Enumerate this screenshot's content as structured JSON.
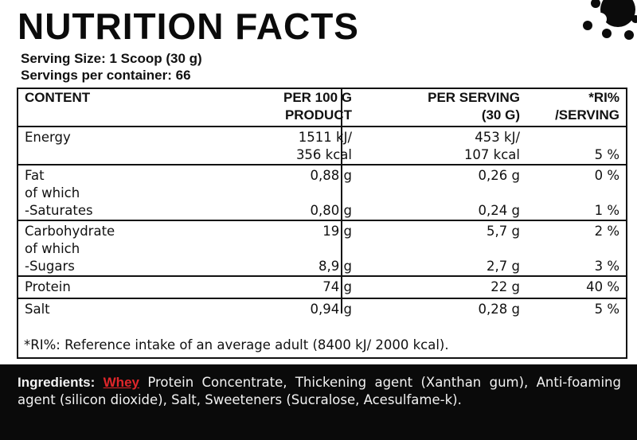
{
  "title": "NUTRITION FACTS",
  "serving": {
    "size": "Serving Size: 1 Scoop (30 g)",
    "per_container": "Servings per container: 66"
  },
  "table": {
    "headers": {
      "content": "CONTENT",
      "per100_l1": "PER 100 G",
      "per100_l2": "PRODUCT",
      "perserv_l1": "PER SERVING",
      "perserv_l2": "(30 G)",
      "ri_l1": "*RI%",
      "ri_l2": "/SERVING"
    },
    "energy": {
      "label": "Energy",
      "per100_l1": "1511 kJ/",
      "per100_l2": "356 kcal",
      "perserv_l1": "453 kJ/",
      "perserv_l2": "107 kcal",
      "ri": "5 %"
    },
    "fat": {
      "label": "Fat",
      "sub_label": "of which",
      "sub_item": "-Saturates",
      "per100": "0,88 g",
      "perserv": "0,26 g",
      "ri": "0 %",
      "sat_per100": "0,80 g",
      "sat_perserv": "0,24 g",
      "sat_ri": "1 %"
    },
    "carb": {
      "label": "Carbohydrate",
      "sub_label": "of which",
      "sub_item": "-Sugars",
      "per100": "19 g",
      "perserv": "5,7 g",
      "ri": "2 %",
      "sug_per100": "8,9 g",
      "sug_perserv": "2,7 g",
      "sug_ri": "3 %"
    },
    "protein": {
      "label": "Protein",
      "per100": "74 g",
      "perserv": "22 g",
      "ri": "40 %"
    },
    "salt": {
      "label": "Salt",
      "per100": "0,94 g",
      "perserv": "0,28 g",
      "ri": "5 %"
    }
  },
  "footnote": "*RI%: Reference intake of an average adult (8400 kJ/ 2000 kcal).",
  "ingredients": {
    "label": "Ingredients:",
    "allergen": "Whey",
    "text": " Protein Concentrate, Thickening agent (Xanthan gum), Anti-foaming agent (silicon dioxide), Salt, Sweeteners (Sucralose, Acesulfame-k).",
    "allergen_color": "#e0262a"
  },
  "colors": {
    "background": "#ffffff",
    "ink": "#111111",
    "ingredients_bg": "#0a0a0a"
  }
}
